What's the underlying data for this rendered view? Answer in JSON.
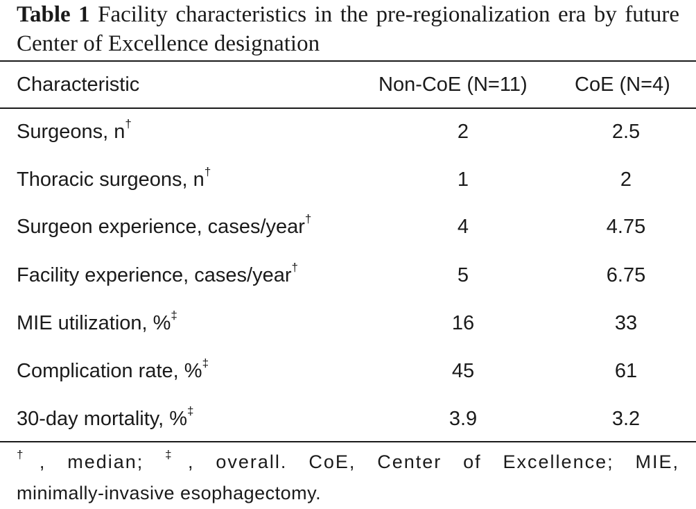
{
  "caption": {
    "label": "Table 1",
    "text": "Facility characteristics in the pre-regionalization era by future Center of Excellence designation"
  },
  "table": {
    "headers": [
      "Characteristic",
      "Non-CoE (N=11)",
      "CoE (N=4)"
    ],
    "rows": [
      {
        "characteristic": "Surgeons, n",
        "mark": "†",
        "non_coe": "2",
        "coe": "2.5"
      },
      {
        "characteristic": "Thoracic surgeons, n",
        "mark": "†",
        "non_coe": "1",
        "coe": "2"
      },
      {
        "characteristic": "Surgeon experience, cases/year",
        "mark": "†",
        "non_coe": "4",
        "coe": "4.75"
      },
      {
        "characteristic": "Facility experience, cases/year",
        "mark": "†",
        "non_coe": "5",
        "coe": "6.75"
      },
      {
        "characteristic": "MIE utilization, %",
        "mark": "‡",
        "non_coe": "16",
        "coe": "33"
      },
      {
        "characteristic": "Complication rate, %",
        "mark": "‡",
        "non_coe": "45",
        "coe": "61"
      },
      {
        "characteristic": "30-day mortality, %",
        "mark": "‡",
        "non_coe": "3.9",
        "coe": "3.2"
      }
    ]
  },
  "footnote": {
    "mark1": "†",
    "text1": ", median; ",
    "mark2": "‡",
    "text2": ", overall. CoE, Center of Excellence; MIE,",
    "text3": "minimally-invasive esophagectomy."
  }
}
